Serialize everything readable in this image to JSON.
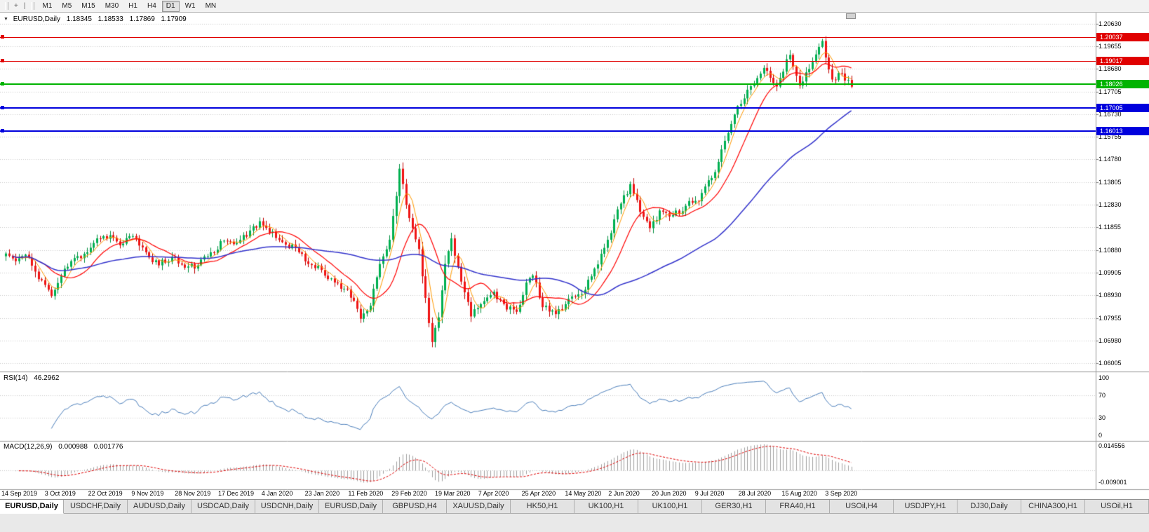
{
  "toolbar": {
    "icons": [
      {
        "name": "crosshair-icon",
        "glyph": "+"
      },
      {
        "name": "cursor-icon",
        "glyph": "|"
      }
    ],
    "timeframes": [
      "M1",
      "M5",
      "M15",
      "M30",
      "H1",
      "H4",
      "D1",
      "W1",
      "MN"
    ],
    "active_timeframe": "D1"
  },
  "chart": {
    "symbol_period": "EURUSD,Daily",
    "open": "1.18345",
    "high": "1.18533",
    "low": "1.17869",
    "close": "1.17909",
    "y_ticks": [
      "1.20630",
      "1.19655",
      "1.18680",
      "1.17705",
      "1.16730",
      "1.15755",
      "1.14780",
      "1.13805",
      "1.12830",
      "1.11855",
      "1.10880",
      "1.09905",
      "1.08930",
      "1.07955",
      "1.06980",
      "1.06005"
    ],
    "x_labels": [
      "14 Sep 2019",
      "3 Oct 2019",
      "22 Oct 2019",
      "9 Nov 2019",
      "28 Nov 2019",
      "17 Dec 2019",
      "4 Jan 2020",
      "23 Jan 2020",
      "11 Feb 2020",
      "29 Feb 2020",
      "19 Mar 2020",
      "7 Apr 2020",
      "25 Apr 2020",
      "14 May 2020",
      "2 Jun 2020",
      "20 Jun 2020",
      "9 Jul 2020",
      "28 Jul 2020",
      "15 Aug 2020",
      "3 Sep 2020"
    ],
    "hlines": [
      {
        "price": "1.20037",
        "value": 1.20037,
        "color": "#e00000",
        "thickness": 1
      },
      {
        "price": "1.19017",
        "value": 1.19017,
        "color": "#e00000",
        "thickness": 1
      },
      {
        "price": "1.18026",
        "value": 1.18026,
        "color": "#00b300",
        "thickness": 2
      },
      {
        "price": "1.17005",
        "value": 1.17005,
        "color": "#0000dd",
        "thickness": 2
      },
      {
        "price": "1.16013",
        "value": 1.16013,
        "color": "#0000dd",
        "thickness": 2
      }
    ],
    "colors": {
      "up_stroke": "#00903f",
      "up_fill": "#00b050",
      "down_stroke": "#c00000",
      "down_fill": "#f01414",
      "ma_fast": "#ff9900",
      "ma_mid": "#ff0000",
      "ma_slow": "#3333cc",
      "grid": "#c9c9c9",
      "separator": "#9a9a9a",
      "rsi_line": "#4a7ebb",
      "macd_hist": "#a0a0a0",
      "macd_signal": "#e00000"
    }
  },
  "rsi": {
    "label": "RSI(14)",
    "value": "46.2962",
    "axis_labels": [
      "100",
      "70",
      "30",
      "0"
    ]
  },
  "macd": {
    "label": "MACD(12,26,9)",
    "value1": "0.000988",
    "value2": "0.001776",
    "axis_top": "0.014556",
    "axis_bottom": "-0.009001"
  },
  "tabs": [
    "EURUSD,Daily",
    "USDCHF,Daily",
    "AUDUSD,Daily",
    "USDCAD,Daily",
    "USDCNH,Daily",
    "EURUSD,Daily",
    "GBPUSD,H4",
    "XAUUSD,Daily",
    "HK50,H1",
    "UK100,H1",
    "UK100,H1",
    "GER30,H1",
    "FRA40,H1",
    "USOil,H4",
    "USDJPY,H1",
    "DJ30,Daily",
    "CHINA300,H1",
    "USOil,H1"
  ],
  "active_tab_index": 0,
  "chart_data": [
    {
      "type": "candlestick",
      "title": "EURUSD,Daily",
      "last_bar": {
        "open": 1.18345,
        "high": 1.18533,
        "low": 1.17869,
        "close": 1.17909
      },
      "ylim": [
        1.0565,
        1.211
      ],
      "y_ticks": [
        1.2063,
        1.19655,
        1.1868,
        1.17705,
        1.1673,
        1.15755,
        1.1478,
        1.13805,
        1.1283,
        1.11855,
        1.1088,
        1.09905,
        1.0893,
        1.07955,
        1.0698,
        1.06005
      ],
      "x_labels": [
        "14 Sep 2019",
        "3 Oct 2019",
        "22 Oct 2019",
        "9 Nov 2019",
        "28 Nov 2019",
        "17 Dec 2019",
        "4 Jan 2020",
        "23 Jan 2020",
        "11 Feb 2020",
        "29 Feb 2020",
        "19 Mar 2020",
        "7 Apr 2020",
        "25 Apr 2020",
        "14 May 2020",
        "2 Jun 2020",
        "20 Jun 2020",
        "9 Jul 2020",
        "28 Jul 2020",
        "15 Aug 2020",
        "3 Sep 2020"
      ],
      "bars_total": 261,
      "price_path_anchors": [
        [
          0,
          1.1073
        ],
        [
          3,
          1.104
        ],
        [
          6,
          1.1068
        ],
        [
          9,
          1.0995
        ],
        [
          12,
          1.0938
        ],
        [
          14,
          1.089
        ],
        [
          17,
          1.0975
        ],
        [
          20,
          1.104
        ],
        [
          24,
          1.1072
        ],
        [
          28,
          1.1138
        ],
        [
          32,
          1.1152
        ],
        [
          35,
          1.1108
        ],
        [
          39,
          1.1148
        ],
        [
          43,
          1.1078
        ],
        [
          47,
          1.1022
        ],
        [
          51,
          1.1058
        ],
        [
          55,
          1.1012
        ],
        [
          59,
          1.1022
        ],
        [
          63,
          1.1078
        ],
        [
          67,
          1.1128
        ],
        [
          71,
          1.1118
        ],
        [
          75,
          1.1172
        ],
        [
          78,
          1.1212
        ],
        [
          81,
          1.1162
        ],
        [
          85,
          1.1122
        ],
        [
          89,
          1.1098
        ],
        [
          93,
          1.1028
        ],
        [
          97,
          1.1002
        ],
        [
          101,
          1.0948
        ],
        [
          105,
          1.0918
        ],
        [
          109,
          1.0792
        ],
        [
          112,
          1.0848
        ],
        [
          115,
          1.1028
        ],
        [
          118,
          1.1132
        ],
        [
          121,
          1.1438
        ],
        [
          123,
          1.1282
        ],
        [
          125,
          1.1182
        ],
        [
          127,
          1.1092
        ],
        [
          129,
          1.0882
        ],
        [
          131,
          1.0692
        ],
        [
          133,
          1.0798
        ],
        [
          135,
          1.1028
        ],
        [
          137,
          1.1138
        ],
        [
          140,
          1.0952
        ],
        [
          143,
          1.0802
        ],
        [
          147,
          1.0868
        ],
        [
          150,
          1.0908
        ],
        [
          154,
          1.0832
        ],
        [
          157,
          1.0822
        ],
        [
          160,
          1.0948
        ],
        [
          162,
          1.0978
        ],
        [
          165,
          1.0842
        ],
        [
          169,
          1.0812
        ],
        [
          173,
          1.0878
        ],
        [
          177,
          1.0898
        ],
        [
          181,
          1.1008
        ],
        [
          185,
          1.1132
        ],
        [
          189,
          1.1288
        ],
        [
          192,
          1.1372
        ],
        [
          195,
          1.1252
        ],
        [
          198,
          1.1182
        ],
        [
          201,
          1.1258
        ],
        [
          205,
          1.1238
        ],
        [
          209,
          1.1278
        ],
        [
          213,
          1.1298
        ],
        [
          217,
          1.1398
        ],
        [
          221,
          1.1558
        ],
        [
          225,
          1.1708
        ],
        [
          228,
          1.1778
        ],
        [
          231,
          1.1828
        ],
        [
          233,
          1.1872
        ],
        [
          237,
          1.1792
        ],
        [
          241,
          1.1928
        ],
        [
          244,
          1.1796
        ],
        [
          248,
          1.1898
        ],
        [
          251,
          1.1988
        ],
        [
          254,
          1.1822
        ],
        [
          257,
          1.1848
        ],
        [
          260,
          1.1791
        ]
      ],
      "moving_averages": [
        {
          "period": 5,
          "color": "#ff9900"
        },
        {
          "period": 13,
          "color": "#ff0000"
        },
        {
          "period": 55,
          "color": "#3333cc"
        }
      ],
      "hlines": [
        1.20037,
        1.19017,
        1.18026,
        1.17005,
        1.16013
      ]
    },
    {
      "type": "line",
      "name": "RSI(14)",
      "period": 14,
      "current": 46.2962,
      "ylim": [
        0,
        100
      ],
      "levels": [
        70,
        30
      ]
    },
    {
      "type": "bar",
      "name": "MACD(12,26,9)",
      "macd_current": 0.000988,
      "signal_current": 0.001776,
      "ylim": [
        -0.009001,
        0.014556
      ]
    }
  ]
}
